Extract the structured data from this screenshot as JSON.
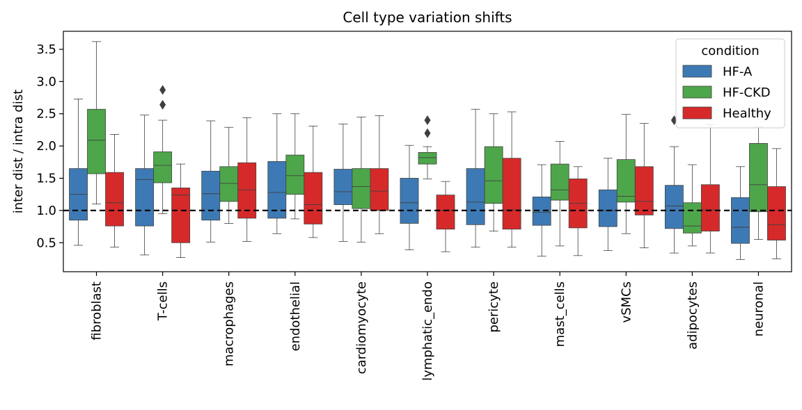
{
  "chart_data": {
    "type": "boxplot",
    "title": "Cell type variation shifts",
    "xlabel": "",
    "ylabel": "inter dist / intra dist",
    "ylim": [
      0.05,
      3.78
    ],
    "yticks": [
      0.5,
      1.0,
      1.5,
      2.0,
      2.5,
      3.0,
      3.5
    ],
    "ytick_labels": [
      "0.5",
      "1.0",
      "1.5",
      "2.0",
      "2.5",
      "3.0",
      "3.5"
    ],
    "reference_line": {
      "y": 1.0,
      "style": "dashed",
      "color": "#000000"
    },
    "categories": [
      "fibroblast",
      "T-cells",
      "macrophages",
      "endothelial",
      "cardiomyocyte",
      "lymphatic_endo",
      "pericyte",
      "mast_cells",
      "vSMCs",
      "adipocytes",
      "neuronal"
    ],
    "legend": {
      "title": "condition",
      "placement": "top-right"
    },
    "series": [
      {
        "name": "HF-A",
        "color": "#3d7ab5",
        "boxes": [
          {
            "whislo": 0.46,
            "q1": 0.85,
            "med": 1.25,
            "q3": 1.65,
            "whishi": 2.73,
            "fliers": []
          },
          {
            "whislo": 0.31,
            "q1": 0.76,
            "med": 1.48,
            "q3": 1.65,
            "whishi": 2.48,
            "fliers": []
          },
          {
            "whislo": 0.51,
            "q1": 0.85,
            "med": 1.26,
            "q3": 1.61,
            "whishi": 2.39,
            "fliers": []
          },
          {
            "whislo": 0.64,
            "q1": 0.88,
            "med": 1.28,
            "q3": 1.76,
            "whishi": 2.5,
            "fliers": []
          },
          {
            "whislo": 0.52,
            "q1": 1.09,
            "med": 1.29,
            "q3": 1.64,
            "whishi": 2.34,
            "fliers": []
          },
          {
            "whislo": 0.39,
            "q1": 0.8,
            "med": 1.12,
            "q3": 1.5,
            "whishi": 2.01,
            "fliers": []
          },
          {
            "whislo": 0.43,
            "q1": 0.78,
            "med": 1.13,
            "q3": 1.65,
            "whishi": 2.57,
            "fliers": []
          },
          {
            "whislo": 0.29,
            "q1": 0.77,
            "med": 0.97,
            "q3": 1.21,
            "whishi": 1.71,
            "fliers": []
          },
          {
            "whislo": 0.38,
            "q1": 0.75,
            "med": 1.0,
            "q3": 1.32,
            "whishi": 1.81,
            "fliers": []
          },
          {
            "whislo": 0.34,
            "q1": 0.72,
            "med": 1.07,
            "q3": 1.39,
            "whishi": 1.99,
            "fliers": [
              2.4
            ]
          },
          {
            "whislo": 0.24,
            "q1": 0.49,
            "med": 0.74,
            "q3": 1.2,
            "whishi": 1.68,
            "fliers": []
          }
        ]
      },
      {
        "name": "HF-CKD",
        "color": "#4ea64a",
        "boxes": [
          {
            "whislo": 1.1,
            "q1": 1.57,
            "med": 2.09,
            "q3": 2.57,
            "whishi": 3.62,
            "fliers": []
          },
          {
            "whislo": 0.95,
            "q1": 1.43,
            "med": 1.7,
            "q3": 1.91,
            "whishi": 2.4,
            "fliers": [
              2.64,
              2.87
            ]
          },
          {
            "whislo": 0.8,
            "q1": 1.14,
            "med": 1.42,
            "q3": 1.68,
            "whishi": 2.29,
            "fliers": []
          },
          {
            "whislo": 0.87,
            "q1": 1.25,
            "med": 1.54,
            "q3": 1.86,
            "whishi": 2.5,
            "fliers": []
          },
          {
            "whislo": 0.51,
            "q1": 1.03,
            "med": 1.37,
            "q3": 1.65,
            "whishi": 2.45,
            "fliers": []
          },
          {
            "whislo": 1.49,
            "q1": 1.72,
            "med": 1.82,
            "q3": 1.9,
            "whishi": 1.99,
            "fliers": [
              2.2,
              2.4
            ]
          },
          {
            "whislo": 0.68,
            "q1": 1.11,
            "med": 1.46,
            "q3": 1.99,
            "whishi": 2.5,
            "fliers": []
          },
          {
            "whislo": 0.45,
            "q1": 1.16,
            "med": 1.32,
            "q3": 1.72,
            "whishi": 2.07,
            "fliers": []
          },
          {
            "whislo": 0.64,
            "q1": 1.13,
            "med": 1.22,
            "q3": 1.79,
            "whishi": 2.49,
            "fliers": []
          },
          {
            "whislo": 0.45,
            "q1": 0.65,
            "med": 0.76,
            "q3": 1.12,
            "whishi": 1.71,
            "fliers": []
          },
          {
            "whislo": 0.55,
            "q1": 0.98,
            "med": 1.4,
            "q3": 2.04,
            "whishi": 2.3,
            "fliers": []
          }
        ]
      },
      {
        "name": "Healthy",
        "color": "#d62a2a",
        "boxes": [
          {
            "whislo": 0.43,
            "q1": 0.76,
            "med": 1.12,
            "q3": 1.59,
            "whishi": 2.18,
            "fliers": []
          },
          {
            "whislo": 0.27,
            "q1": 0.5,
            "med": 1.24,
            "q3": 1.35,
            "whishi": 1.72,
            "fliers": []
          },
          {
            "whislo": 0.52,
            "q1": 0.88,
            "med": 1.32,
            "q3": 1.74,
            "whishi": 2.44,
            "fliers": []
          },
          {
            "whislo": 0.58,
            "q1": 0.79,
            "med": 1.09,
            "q3": 1.59,
            "whishi": 2.31,
            "fliers": []
          },
          {
            "whislo": 0.64,
            "q1": 1.0,
            "med": 1.3,
            "q3": 1.65,
            "whishi": 2.47,
            "fliers": []
          },
          {
            "whislo": 0.36,
            "q1": 0.71,
            "med": 1.0,
            "q3": 1.24,
            "whishi": 1.45,
            "fliers": []
          },
          {
            "whislo": 0.43,
            "q1": 0.71,
            "med": 1.01,
            "q3": 1.81,
            "whishi": 2.53,
            "fliers": []
          },
          {
            "whislo": 0.3,
            "q1": 0.73,
            "med": 1.11,
            "q3": 1.49,
            "whishi": 1.68,
            "fliers": []
          },
          {
            "whislo": 0.42,
            "q1": 0.93,
            "med": 1.14,
            "q3": 1.68,
            "whishi": 2.35,
            "fliers": []
          },
          {
            "whislo": 0.34,
            "q1": 0.68,
            "med": 1.01,
            "q3": 1.4,
            "whishi": 2.33,
            "fliers": []
          },
          {
            "whislo": 0.25,
            "q1": 0.54,
            "med": 0.78,
            "q3": 1.37,
            "whishi": 1.96,
            "fliers": []
          }
        ]
      }
    ]
  }
}
